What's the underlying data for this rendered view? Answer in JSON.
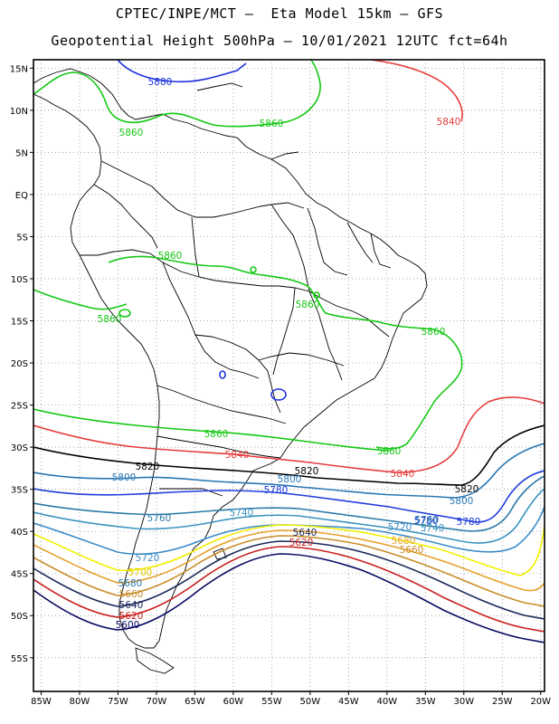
{
  "header": {
    "title_line1": "CPTEC/INPE/MCT –  Eta Model 15km – GFS",
    "title_line2": "Geopotential Height 500hPa – 10/01/2021 12UTC fct=64h"
  },
  "map": {
    "lon_range": [
      -86,
      -19.5
    ],
    "lat_range": [
      -59,
      16
    ],
    "lat_ticks": [
      "15N",
      "10N",
      "5N",
      "EQ",
      "5S",
      "10S",
      "15S",
      "20S",
      "25S",
      "30S",
      "35S",
      "40S",
      "45S",
      "50S",
      "55S"
    ],
    "lat_values": [
      15,
      10,
      5,
      0,
      -5,
      -10,
      -15,
      -20,
      -25,
      -30,
      -35,
      -40,
      -45,
      -50,
      -55
    ],
    "lon_ticks": [
      "85W",
      "80W",
      "75W",
      "70W",
      "65W",
      "60W",
      "55W",
      "50W",
      "45W",
      "40W",
      "35W",
      "30W",
      "25W",
      "20W"
    ],
    "lon_values": [
      -85,
      -80,
      -75,
      -70,
      -65,
      -60,
      -55,
      -50,
      -45,
      -40,
      -35,
      -30,
      -25,
      -20
    ],
    "grid": "dotted",
    "contour_labels": {
      "c5880_n": "5880",
      "c5860_a": "5860",
      "c5860_b": "5860",
      "c5860_c": "5860",
      "c5860_d": "5860",
      "c5860_e": "5860",
      "c5860_f": "5860",
      "c5860_g": "5860",
      "c5860_h": "5860",
      "c5860_i": "5860",
      "c5840_n": "5840",
      "c5840_a": "5840",
      "c5840_b": "5840",
      "c5820_a": "5820",
      "c5820_b": "5820",
      "c5820_c": "5820",
      "c5800_a": "5800",
      "c5800_b": "5800",
      "c5800_c": "5800",
      "c5780_a": "5780",
      "c5780_b": "5780",
      "c5780_c": "5780",
      "c5760_a": "5760",
      "c5760_b": "5760",
      "c5740_a": "5740",
      "c5740_b": "5740",
      "c5720_a": "5720",
      "c5720_b": "5720",
      "c5700": "5700",
      "c5680_a": "5680",
      "c5680_b": "5680",
      "c5660_a": "5660",
      "c5660_b": "5660",
      "c5640_a": "5640",
      "c5640_b": "5640",
      "c5620_a": "5620",
      "c5620_b": "5620",
      "c5600": "5600"
    },
    "colors": {
      "c5880": "#1e32dc",
      "c5860": "#14c814",
      "c5840": "#e63c3c",
      "c5820": "#000000",
      "c5800": "#2878b4",
      "c5780": "#1e3cdc",
      "c5760": "#2a7aa8",
      "c5740": "#3a94c0",
      "c5720": "#3c8cc8",
      "c5700": "#f0f000",
      "c5680": "#e6a028",
      "c5660": "#c88c28",
      "c5640": "#19285a",
      "c5620": "#c81e1e",
      "c5600": "#0a0a64"
    }
  }
}
